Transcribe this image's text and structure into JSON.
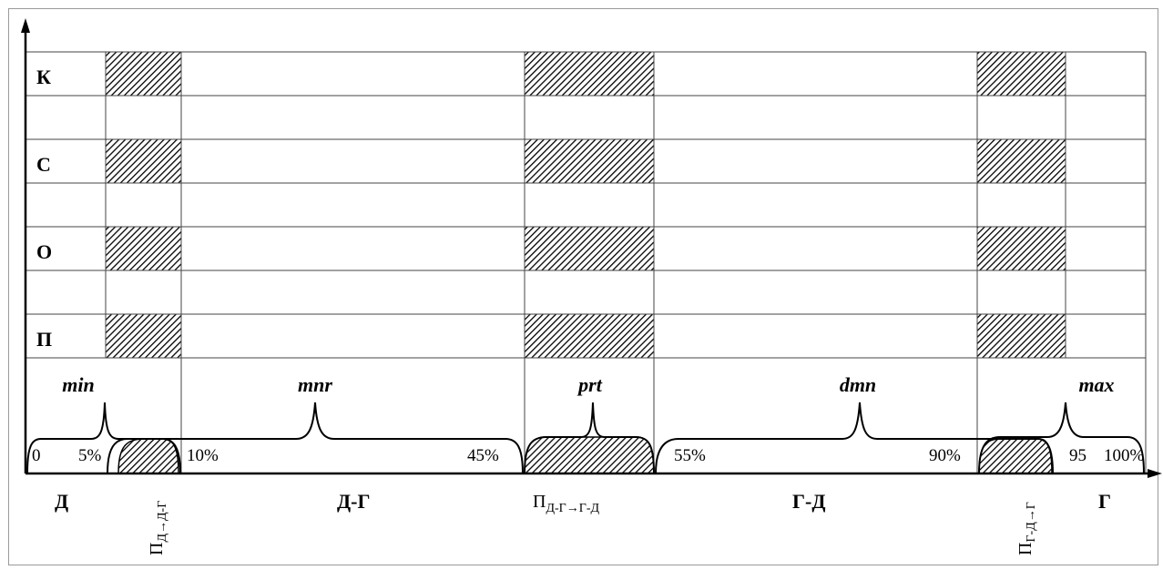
{
  "rows": [
    "К",
    "С",
    "О",
    "П"
  ],
  "zones": [
    "min",
    "mnr",
    "prt",
    "dmn",
    "max"
  ],
  "percent_marks": [
    "0",
    "5%",
    "10%",
    "45%",
    "55%",
    "90%",
    "95",
    "100%"
  ],
  "categories": [
    "Д",
    "Д-Г",
    "Г-Д",
    "Г"
  ],
  "transitions": [
    {
      "main": "П",
      "sub": "Д→Д-Г"
    },
    {
      "main": "П",
      "sub": "Д-Г→Г-Д"
    },
    {
      "main": "П",
      "sub": "Г-Д→Г"
    }
  ],
  "colors": {
    "line": "#000000",
    "grid": "#444444",
    "frame": "#9a9a9a"
  }
}
